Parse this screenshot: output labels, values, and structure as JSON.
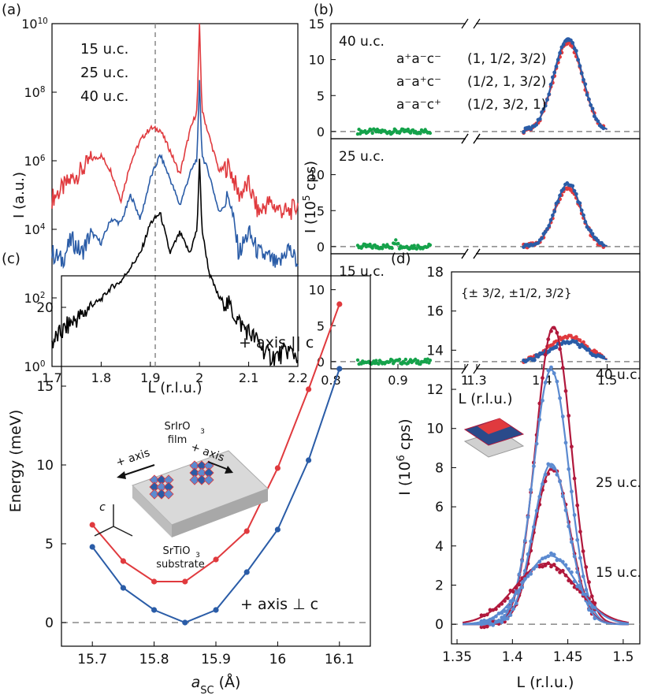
{
  "figure": {
    "panels": {
      "a": {
        "label": "(a)"
      },
      "b": {
        "label": "(b)"
      },
      "c": {
        "label": "(c)"
      },
      "d": {
        "label": "(d)"
      }
    },
    "colors": {
      "red": "#e03a3e",
      "blue": "#2a5ca7",
      "black": "#000000",
      "green": "#14a24a",
      "crimson": "#b0183c",
      "lightblue": "#5b8ad0"
    }
  },
  "chart_data": [
    {
      "id": "a",
      "type": "line",
      "xlabel": "L (r.l.u.)",
      "ylabel": "I (a.u.)",
      "yscale": "log",
      "xlim": [
        1.7,
        2.2
      ],
      "ylim": [
        1,
        10000000000
      ],
      "xticks": [
        "1.7",
        "1.8",
        "1.9",
        "2",
        "2.1",
        "2.2"
      ],
      "yticks": [
        "10^0",
        "10^2",
        "10^4",
        "10^6",
        "10^8",
        "10^10"
      ],
      "legend": [
        "15 u.c.",
        "25 u.c.",
        "40 u.c."
      ],
      "vline": 1.91,
      "series": [
        {
          "name": "15 u.c.",
          "color": "#e03a3e",
          "x": [
            1.7,
            1.72,
            1.74,
            1.76,
            1.78,
            1.8,
            1.82,
            1.84,
            1.86,
            1.88,
            1.9,
            1.92,
            1.94,
            1.96,
            1.98,
            1.995,
            2.0,
            2.005,
            2.02,
            2.04,
            2.06,
            2.08,
            2.1,
            2.12,
            2.14,
            2.16,
            2.18,
            2.2
          ],
          "y": [
            80000,
            150000,
            300000,
            500000,
            1100000,
            1400000,
            500000,
            70000,
            900000,
            4000000,
            9000000,
            8000000,
            2000000,
            400000,
            7000000,
            30000000,
            10000000000,
            30000000,
            5000000,
            500000,
            700000,
            100000,
            200000,
            30000,
            60000,
            40000,
            30000,
            50000
          ]
        },
        {
          "name": "25 u.c.",
          "color": "#2a5ca7",
          "x": [
            1.7,
            1.72,
            1.74,
            1.76,
            1.78,
            1.8,
            1.82,
            1.84,
            1.86,
            1.88,
            1.9,
            1.92,
            1.94,
            1.96,
            1.98,
            1.995,
            2.0,
            2.005,
            2.02,
            2.04,
            2.06,
            2.08,
            2.1,
            2.12,
            2.14,
            2.16,
            2.18,
            2.2
          ],
          "y": [
            2000,
            1200,
            5000,
            2000,
            8000,
            4000,
            20000,
            15000,
            100000,
            20000,
            300000,
            1500000,
            300000,
            50000,
            400000,
            1200000,
            200000000,
            1500000,
            400000,
            30000,
            100000,
            2000,
            8000,
            2000,
            1500,
            800,
            3000,
            1000
          ]
        },
        {
          "name": "40 u.c.",
          "color": "#000000",
          "x": [
            1.7,
            1.72,
            1.74,
            1.76,
            1.78,
            1.8,
            1.82,
            1.84,
            1.86,
            1.88,
            1.9,
            1.92,
            1.94,
            1.96,
            1.98,
            1.995,
            2.0,
            2.005,
            2.02,
            2.04,
            2.06,
            2.08,
            2.1,
            2.12,
            2.14,
            2.16,
            2.18,
            2.2
          ],
          "y": [
            5,
            10,
            20,
            30,
            60,
            90,
            200,
            300,
            800,
            2000,
            15000,
            30000,
            2000,
            8000,
            2000,
            10000,
            1000000,
            10000,
            500,
            100,
            60,
            20,
            10,
            5,
            2,
            2,
            3,
            2
          ]
        }
      ]
    },
    {
      "id": "b",
      "type": "scatter",
      "xlabel": "L (r.l.u.)",
      "ylabel": "I (10^5 cps)",
      "xticks": [
        "0.8",
        "0.9",
        "1",
        "1.3",
        "1.4",
        "1.5"
      ],
      "yticks": [
        "0",
        "5",
        "10",
        "15"
      ],
      "ylim": [
        -1,
        15
      ],
      "broken_axis": {
        "left": [
          0.8,
          1.0
        ],
        "right": [
          1.3,
          1.55
        ]
      },
      "legend": [
        {
          "name": "a⁺a⁻c⁻",
          "index": "(1, 1/2, 3/2)",
          "color": "#e03a3e"
        },
        {
          "name": "a⁻a⁺c⁻",
          "index": "(1/2, 1, 3/2)",
          "color": "#2a5ca7"
        },
        {
          "name": "a⁻a⁻c⁺",
          "index": "(1/2, 3/2, 1)",
          "color": "#14a24a"
        }
      ],
      "subpanels": [
        {
          "label": "40 u.c.",
          "red_peak": 12.4,
          "blue_peak": 13.0,
          "center": 1.44,
          "width": 0.022
        },
        {
          "label": "25 u.c.",
          "red_peak": 8.3,
          "blue_peak": 8.7,
          "center": 1.44,
          "width": 0.02
        },
        {
          "label": "15 u.c.",
          "red_peak": 3.5,
          "blue_peak": 2.8,
          "center": 1.44,
          "width": 0.028
        }
      ]
    },
    {
      "id": "c",
      "type": "line",
      "xlabel": "a_SC (Å)",
      "ylabel": "Energy (meV)",
      "xlim": [
        15.65,
        16.15
      ],
      "ylim": [
        -1.5,
        22
      ],
      "xticks": [
        "15.7",
        "15.8",
        "15.9",
        "16",
        "16.1"
      ],
      "yticks": [
        "0",
        "5",
        "10",
        "15",
        "20"
      ],
      "series": [
        {
          "name": "+ axis || c",
          "color": "#e03a3e",
          "x": [
            15.7,
            15.75,
            15.8,
            15.85,
            15.9,
            15.95,
            16.0,
            16.05,
            16.1
          ],
          "y": [
            6.2,
            3.9,
            2.6,
            2.6,
            4.0,
            5.8,
            9.8,
            14.8,
            20.2
          ]
        },
        {
          "name": "+ axis ⊥ c",
          "color": "#2a5ca7",
          "x": [
            15.7,
            15.75,
            15.8,
            15.85,
            15.9,
            15.95,
            16.0,
            16.05,
            16.1
          ],
          "y": [
            4.8,
            2.2,
            0.8,
            0.0,
            0.8,
            3.2,
            5.9,
            10.3,
            16.1
          ]
        }
      ],
      "inset": {
        "film_label": "SrIrO",
        "film_sub": "3",
        "film_word": "film",
        "axis_left": "+ axis",
        "axis_right": "+ axis",
        "axis_c": "c",
        "substrate_label": "SrTiO",
        "substrate_sub": "3",
        "substrate_word": "substrate"
      }
    },
    {
      "id": "d",
      "type": "line",
      "xlabel": "L (r.l.u.)",
      "ylabel": "I (10^6 cps)",
      "xlim": [
        1.345,
        1.515
      ],
      "ylim": [
        -1,
        18
      ],
      "xticks": [
        "1.35",
        "1.4",
        "1.45",
        "1.5"
      ],
      "yticks": [
        "0",
        "2",
        "4",
        "6",
        "8",
        "10",
        "12",
        "14",
        "16",
        "18"
      ],
      "annotation": "{± 3/2, ±1/2, 3/2}",
      "thickness_labels": [
        "40 u.c.",
        "25 u.c.",
        "15 u.c."
      ],
      "series": [
        {
          "name": "40 u.c. red",
          "color": "#b0183c",
          "peak": 15.2,
          "center": 1.437,
          "width": 0.016
        },
        {
          "name": "40 u.c. blue",
          "color": "#5b8ad0",
          "peak": 13.0,
          "center": 1.435,
          "width": 0.016
        },
        {
          "name": "25 u.c. red",
          "color": "#b0183c",
          "peak": 8.0,
          "center": 1.436,
          "width": 0.016
        },
        {
          "name": "25 u.c. blue",
          "color": "#5b8ad0",
          "peak": 8.2,
          "center": 1.435,
          "width": 0.016
        },
        {
          "name": "15 u.c. red",
          "color": "#b0183c",
          "peak": 3.1,
          "center": 1.43,
          "width": 0.028
        },
        {
          "name": "15 u.c. blue",
          "color": "#5b8ad0",
          "peak": 3.5,
          "center": 1.434,
          "width": 0.024
        }
      ]
    }
  ]
}
